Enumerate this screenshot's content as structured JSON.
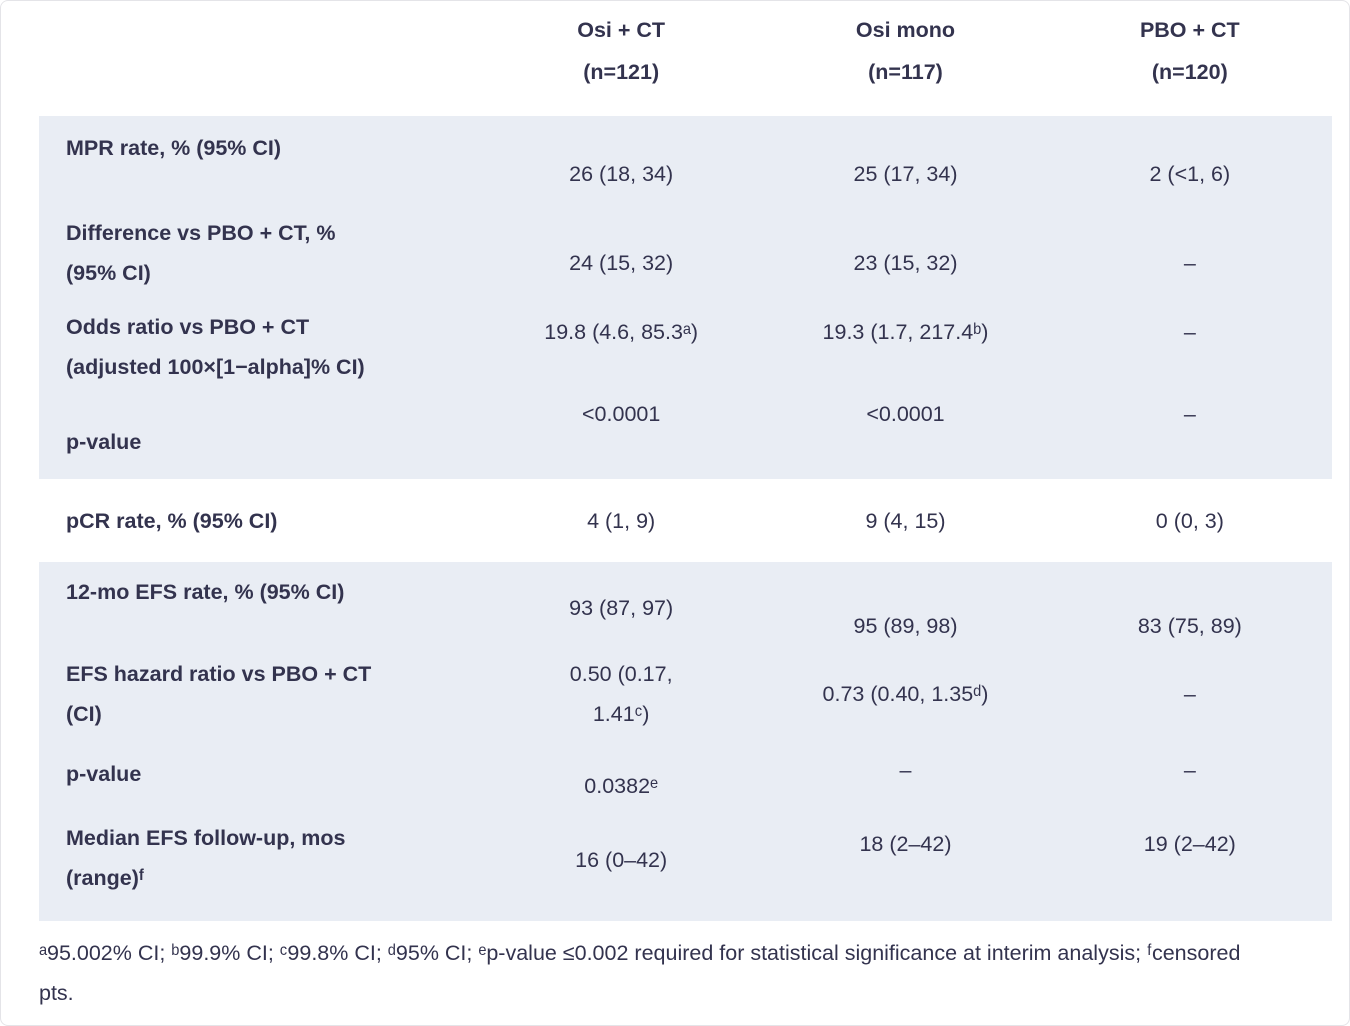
{
  "table": {
    "header": {
      "columns": [
        {
          "name": "Osi + CT",
          "n": "(n=121)"
        },
        {
          "name": "Osi mono",
          "n": "(n=117)"
        },
        {
          "name": "PBO + CT",
          "n": "(n=120)"
        }
      ]
    },
    "sections": [
      {
        "rows": [
          {
            "label": "MPR rate, % (95% CI)",
            "values": [
              "26 (18, 34)",
              "25 (17, 34)",
              "2 (<1, 6)"
            ]
          },
          {
            "label": "Difference vs PBO + CT, %\n(95% CI)",
            "values": [
              "24 (15, 32)",
              "23 (15, 32)",
              "–"
            ]
          },
          {
            "label": "Odds ratio vs PBO + CT\n(adjusted 100×[1−alpha]% CI)",
            "values": [
              "19.8 (4.6, 85.3ᵃ)",
              "19.3 (1.7, 217.4ᵇ)",
              "–"
            ]
          },
          {
            "label": "p-value",
            "values": [
              "<0.0001",
              "<0.0001",
              "–"
            ]
          }
        ]
      },
      {
        "rows": [
          {
            "label": "pCR rate, % (95% CI)",
            "values": [
              "4 (1, 9)",
              "9 (4, 15)",
              "0 (0, 3)"
            ]
          }
        ]
      },
      {
        "rows": [
          {
            "label": "12-mo EFS rate, % (95% CI)",
            "values": [
              "93 (87, 97)",
              "95 (89, 98)",
              "83 (75, 89)"
            ]
          },
          {
            "label": "EFS hazard ratio vs PBO + CT\n(CI)",
            "values": [
              "0.50 (0.17,\n1.41ᶜ)",
              "0.73 (0.40, 1.35ᵈ)",
              "–"
            ]
          },
          {
            "label": "p-value",
            "values": [
              "0.0382ᵉ",
              "–",
              "–"
            ]
          },
          {
            "label": "Median EFS follow-up, mos\n(range)ᶠ",
            "values": [
              "16 (0–42)",
              "18 (2–42)",
              "19 (2–42)"
            ]
          }
        ]
      }
    ],
    "footnote": "ᵃ95.002% CI; ᵇ99.9% CI; ᶜ99.8% CI; ᵈ95% CI; ᵉp-value ≤0.002 required for statistical significance at interim analysis; ᶠcensored pts.",
    "colors": {
      "section_background": "#e9edf4",
      "text": "#33334e",
      "page_background": "#ffffff"
    }
  }
}
